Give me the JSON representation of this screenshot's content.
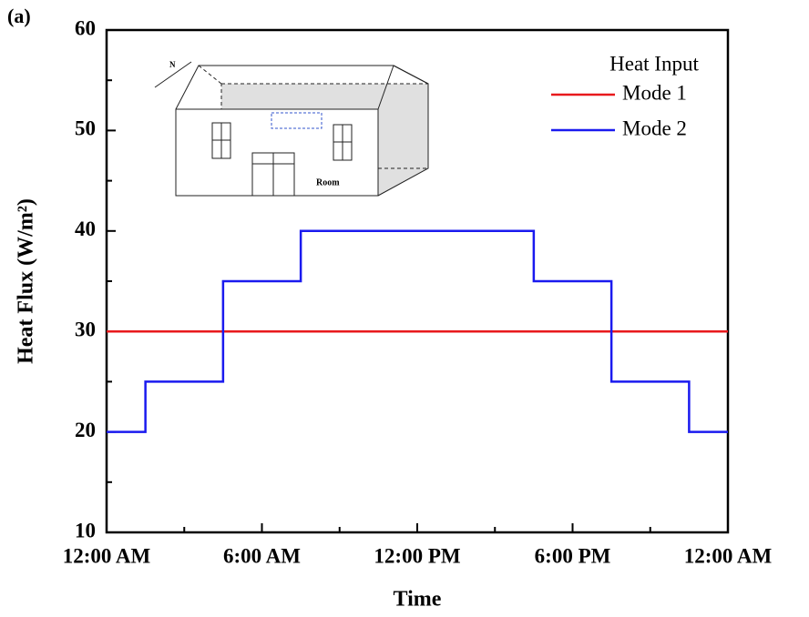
{
  "panel_label": "(a)",
  "inset": {
    "north_label": "N",
    "room_label": "Room"
  },
  "chart_data": {
    "type": "line",
    "x_label": "Time",
    "y_label": "Heat Flux (W/m²)",
    "xlim": [
      0,
      24
    ],
    "xticks": [
      {
        "value": 0,
        "label": "12:00 AM"
      },
      {
        "value": 6,
        "label": "6:00 AM"
      },
      {
        "value": 12,
        "label": "12:00 PM"
      },
      {
        "value": 18,
        "label": "6:00 PM"
      },
      {
        "value": 24,
        "label": "12:00 AM"
      }
    ],
    "x_minor_ticks": [
      3,
      9,
      15,
      21
    ],
    "ylim": [
      10,
      60
    ],
    "yticks": [
      10,
      20,
      30,
      40,
      50,
      60
    ],
    "y_minor_ticks": [
      15,
      25,
      35,
      45,
      55
    ],
    "legend_title": "Heat Input",
    "legend": "upper right",
    "series": [
      {
        "name": "Mode 1",
        "color": "#e8191c",
        "x": [
          0,
          24
        ],
        "values": [
          30,
          30
        ]
      },
      {
        "name": "Mode 2",
        "color": "#1a1aef",
        "x": [
          0,
          1.5,
          1.5,
          4.5,
          4.5,
          7.5,
          7.5,
          16.5,
          16.5,
          19.5,
          19.5,
          22.5,
          22.5,
          24
        ],
        "values": [
          20,
          20,
          25,
          25,
          35,
          35,
          40,
          40,
          35,
          35,
          25,
          25,
          20,
          20
        ]
      }
    ]
  }
}
